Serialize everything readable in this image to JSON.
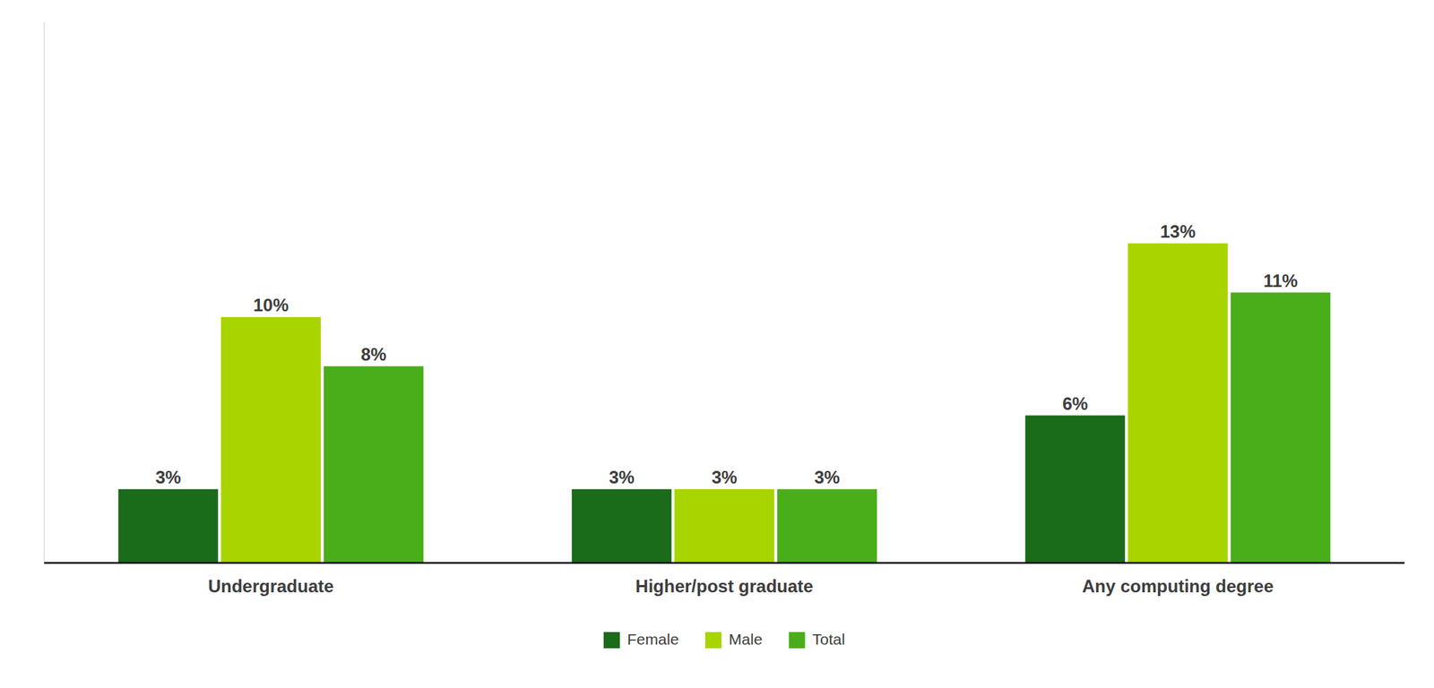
{
  "chart_data": {
    "type": "bar",
    "categories": [
      "Undergraduate",
      "Higher/post graduate",
      "Any computing degree"
    ],
    "series": [
      {
        "name": "Female",
        "color": "#1a6b1a",
        "values": [
          3,
          3,
          6
        ],
        "value_labels": [
          "3%",
          "3%",
          "6%"
        ]
      },
      {
        "name": "Male",
        "color": "#a8d400",
        "values": [
          10,
          3,
          13
        ],
        "value_labels": [
          "10%",
          "3%",
          "13%"
        ]
      },
      {
        "name": "Total",
        "color": "#4aad1a",
        "values": [
          8,
          3,
          11
        ],
        "value_labels": [
          "8%",
          "3%",
          "11%"
        ]
      }
    ],
    "ylim": [
      0,
      22
    ],
    "grid": false,
    "legend": "bottom",
    "data_labels": true,
    "tick_labels": "x"
  }
}
